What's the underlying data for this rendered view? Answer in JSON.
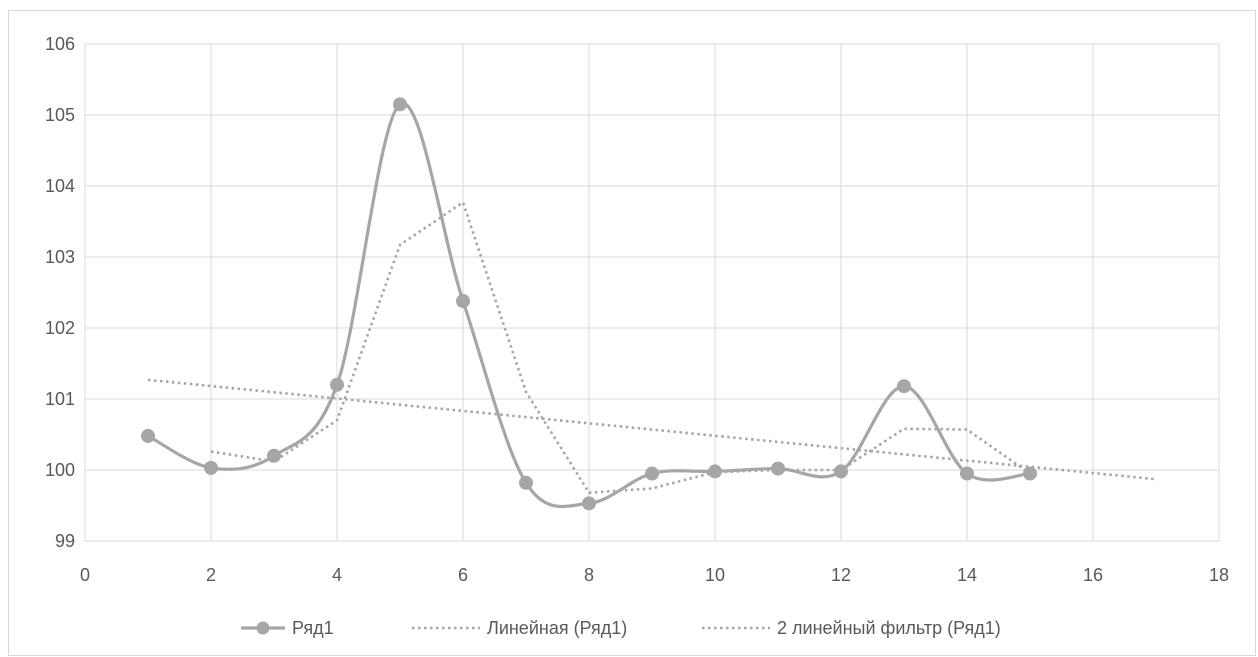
{
  "chart_data": {
    "type": "scatter",
    "title": "",
    "xlabel": "",
    "ylabel": "",
    "xlim": [
      0,
      18
    ],
    "ylim": [
      99,
      106
    ],
    "xticks": [
      0,
      2,
      4,
      6,
      8,
      10,
      12,
      14,
      16,
      18
    ],
    "yticks": [
      99,
      100,
      101,
      102,
      103,
      104,
      105,
      106
    ],
    "grid": true,
    "legend_position": "bottom",
    "series": [
      {
        "name": "Ряд1",
        "style": "smooth-line-with-markers",
        "color": "#a6a6a6",
        "x": [
          1,
          2,
          3,
          4,
          5,
          6,
          7,
          8,
          9,
          10,
          11,
          12,
          13,
          14,
          15
        ],
        "y": [
          100.48,
          100.03,
          100.2,
          101.2,
          105.15,
          102.38,
          99.82,
          99.53,
          99.95,
          99.98,
          100.02,
          99.98,
          101.18,
          99.95,
          99.95
        ]
      },
      {
        "name": "Линейная (Ряд1)",
        "style": "dotted-trendline",
        "color": "#a6a6a6",
        "x": [
          1,
          17
        ],
        "y": [
          101.27,
          99.87
        ]
      },
      {
        "name": "2 линейный фильтр (Ряд1)",
        "style": "dotted-moving-average",
        "color": "#a6a6a6",
        "x": [
          2,
          3,
          4,
          5,
          6,
          7,
          8,
          9,
          10,
          11,
          12,
          13,
          14,
          15
        ],
        "y": [
          100.26,
          100.12,
          100.7,
          103.17,
          103.77,
          101.1,
          99.68,
          99.74,
          99.97,
          100.0,
          100.0,
          100.58,
          100.57,
          99.95
        ]
      }
    ]
  }
}
